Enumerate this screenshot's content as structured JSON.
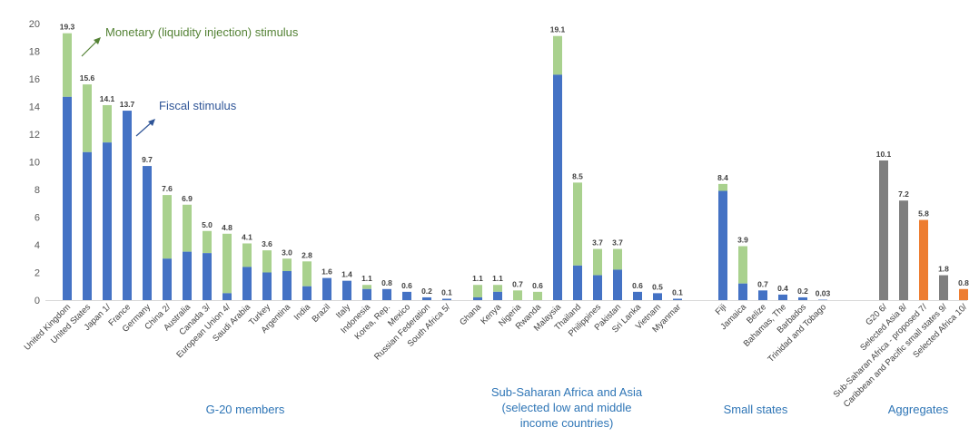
{
  "chart_data": {
    "type": "bar",
    "stacked": true,
    "ylim": [
      0,
      20
    ],
    "yticks": [
      0,
      2,
      4,
      6,
      8,
      10,
      12,
      14,
      16,
      18,
      20
    ],
    "grid": false,
    "annotations": {
      "monetary": "Monetary (liquidity injection) stimulus",
      "fiscal": "Fiscal stimulus"
    },
    "colors": {
      "fiscal": "#4472C4",
      "monetary": "#A9D18E",
      "aggregate_gray": "#7F7F7F",
      "aggregate_orange": "#ED7D31",
      "annotation_green": "#548235",
      "annotation_blue": "#2F5597",
      "group_label": "#2E75B6"
    },
    "groups": [
      {
        "label": [
          "G-20 members"
        ],
        "bars": [
          {
            "name": "United Kingdom",
            "fiscal": 14.7,
            "total": 19.3,
            "label": "19.3"
          },
          {
            "name": "United States",
            "fiscal": 10.7,
            "total": 15.6,
            "label": "15.6"
          },
          {
            "name": "Japan 1/",
            "fiscal": 11.4,
            "total": 14.1,
            "label": "14.1"
          },
          {
            "name": "France",
            "fiscal": 13.7,
            "total": 13.7,
            "label": "13.7"
          },
          {
            "name": "Germany",
            "fiscal": 9.7,
            "total": 9.7,
            "label": "9.7"
          },
          {
            "name": "China 2/",
            "fiscal": 3.0,
            "total": 7.6,
            "label": "7.6"
          },
          {
            "name": "Australia",
            "fiscal": 3.5,
            "total": 6.9,
            "label": "6.9"
          },
          {
            "name": "Canada 3/",
            "fiscal": 3.4,
            "total": 5.0,
            "label": "5.0"
          },
          {
            "name": "European Union 4/",
            "fiscal": 0.5,
            "total": 4.8,
            "label": "4.8"
          },
          {
            "name": "Saudi Arabia",
            "fiscal": 2.4,
            "total": 4.1,
            "label": "4.1"
          },
          {
            "name": "Turkey",
            "fiscal": 2.0,
            "total": 3.6,
            "label": "3.6"
          },
          {
            "name": "Argentina",
            "fiscal": 2.1,
            "total": 3.0,
            "label": "3.0"
          },
          {
            "name": "India",
            "fiscal": 1.0,
            "total": 2.8,
            "label": "2.8"
          },
          {
            "name": "Brazil",
            "fiscal": 1.6,
            "total": 1.6,
            "label": "1.6"
          },
          {
            "name": "Italy",
            "fiscal": 1.4,
            "total": 1.4,
            "label": "1.4"
          },
          {
            "name": "Indonesia",
            "fiscal": 0.8,
            "total": 1.1,
            "label": "1.1"
          },
          {
            "name": "Korea, Rep.",
            "fiscal": 0.8,
            "total": 0.8,
            "label": "0.8"
          },
          {
            "name": "Mexico",
            "fiscal": 0.6,
            "total": 0.6,
            "label": "0.6"
          },
          {
            "name": "Russian Federation",
            "fiscal": 0.2,
            "total": 0.2,
            "label": "0.2"
          },
          {
            "name": "South Africa 5/",
            "fiscal": 0.1,
            "total": 0.1,
            "label": "0.1"
          }
        ]
      },
      {
        "label": [
          "Sub-Saharan Africa and Asia",
          "(selected low and middle",
          "income countries)"
        ],
        "bars": [
          {
            "name": "Ghana",
            "fiscal": 0.2,
            "total": 1.1,
            "label": "1.1"
          },
          {
            "name": "Kenya",
            "fiscal": 0.6,
            "total": 1.1,
            "label": "1.1"
          },
          {
            "name": "Nigeria",
            "fiscal": 0.0,
            "total": 0.7,
            "label": "0.7"
          },
          {
            "name": "Rwanda",
            "fiscal": 0.0,
            "total": 0.6,
            "label": "0.6"
          },
          {
            "name": "Malaysia",
            "fiscal": 16.3,
            "total": 19.1,
            "label": "19.1"
          },
          {
            "name": "Thailand",
            "fiscal": 2.5,
            "total": 8.5,
            "label": "8.5"
          },
          {
            "name": "Philippines",
            "fiscal": 1.8,
            "total": 3.7,
            "label": "3.7"
          },
          {
            "name": "Pakistan",
            "fiscal": 2.2,
            "total": 3.7,
            "label": "3.7"
          },
          {
            "name": "Sri Lanka",
            "fiscal": 0.6,
            "total": 0.6,
            "label": "0.6"
          },
          {
            "name": "Vietnam",
            "fiscal": 0.5,
            "total": 0.5,
            "label": "0.5"
          },
          {
            "name": "Myanmar",
            "fiscal": 0.1,
            "total": 0.1,
            "label": "0.1"
          }
        ]
      },
      {
        "label": [
          "Small states"
        ],
        "bars": [
          {
            "name": "Fiji",
            "fiscal": 7.9,
            "total": 8.4,
            "label": "8.4"
          },
          {
            "name": "Jamaica",
            "fiscal": 1.2,
            "total": 3.9,
            "label": "3.9"
          },
          {
            "name": "Belize",
            "fiscal": 0.7,
            "total": 0.7,
            "label": "0.7"
          },
          {
            "name": "Bahamas, The",
            "fiscal": 0.4,
            "total": 0.4,
            "label": "0.4"
          },
          {
            "name": "Barbados",
            "fiscal": 0.2,
            "total": 0.2,
            "label": "0.2"
          },
          {
            "name": "Trinidad and Tobago",
            "fiscal": 0.03,
            "total": 0.03,
            "label": "0.03"
          }
        ]
      },
      {
        "label": [
          "Aggregates"
        ],
        "bars": [
          {
            "name": "G20 6/",
            "total": 10.1,
            "label": "10.1",
            "color": "gray"
          },
          {
            "name": "Selected Asia 8/",
            "total": 7.2,
            "label": "7.2",
            "color": "gray"
          },
          {
            "name": "Sub-Saharan Africa - proposed 7/",
            "total": 5.8,
            "label": "5.8",
            "color": "orange"
          },
          {
            "name": "Caribbean and Pacific small states 9/",
            "total": 1.8,
            "label": "1.8",
            "color": "gray"
          },
          {
            "name": "Selected Africa 10/",
            "total": 0.8,
            "label": "0.8",
            "color": "orange"
          }
        ]
      }
    ]
  }
}
